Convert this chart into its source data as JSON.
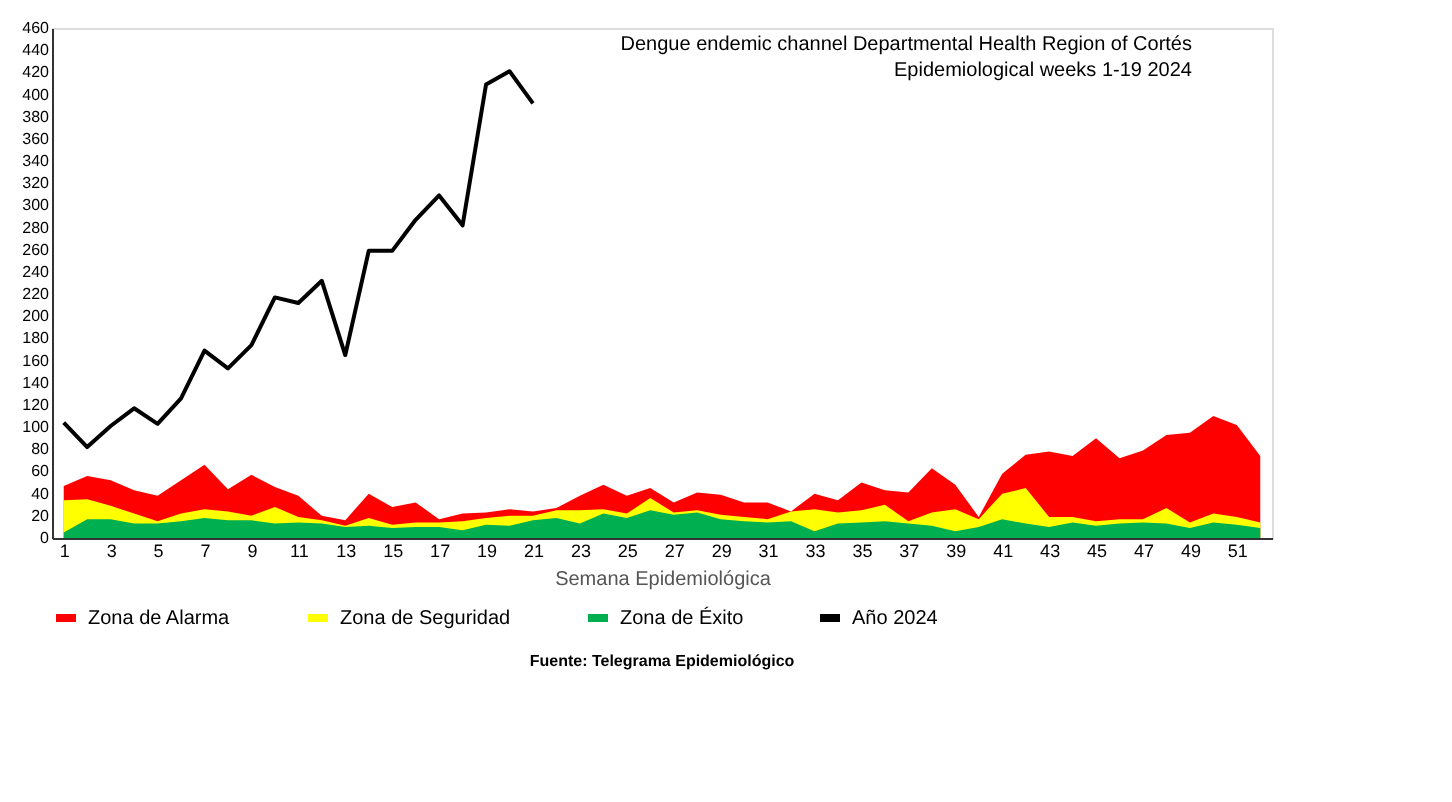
{
  "chart_data": {
    "type": "area",
    "title": "Dengue endemic channel Departmental Health Region of Cortés",
    "subtitle": "Epidemiological weeks 1-19 2024",
    "xlabel": "Semana Epidemiológica",
    "x": [
      1,
      2,
      3,
      4,
      5,
      6,
      7,
      8,
      9,
      10,
      11,
      12,
      13,
      14,
      15,
      16,
      17,
      18,
      19,
      20,
      21,
      22,
      23,
      24,
      25,
      26,
      27,
      28,
      29,
      30,
      31,
      32,
      33,
      34,
      35,
      36,
      37,
      38,
      39,
      40,
      41,
      42,
      43,
      44,
      45,
      46,
      47,
      48,
      49,
      50,
      51,
      52
    ],
    "series": [
      {
        "name": "Zona de Alarma",
        "color": "#ff0000",
        "values": [
          47,
          56,
          52,
          43,
          38,
          52,
          66,
          44,
          57,
          46,
          38,
          20,
          16,
          40,
          28,
          32,
          17,
          22,
          23,
          26,
          24,
          27,
          38,
          48,
          38,
          45,
          32,
          41,
          39,
          32,
          32,
          24,
          40,
          34,
          50,
          43,
          41,
          63,
          48,
          19,
          58,
          75,
          78,
          74,
          90,
          72,
          79,
          93,
          95,
          110,
          102,
          74
        ]
      },
      {
        "name": "Zona de Seguridad",
        "color": "#ffff00",
        "values": [
          34,
          35,
          29,
          22,
          15,
          22,
          26,
          24,
          20,
          28,
          19,
          16,
          11,
          18,
          12,
          14,
          14,
          15,
          18,
          20,
          20,
          25,
          25,
          26,
          22,
          36,
          23,
          25,
          21,
          19,
          17,
          24,
          26,
          23,
          25,
          30,
          15,
          23,
          26,
          17,
          40,
          45,
          19,
          19,
          15,
          17,
          17,
          27,
          14,
          22,
          19,
          14
        ]
      },
      {
        "name": "Zona de Éxito",
        "color": "#00b050",
        "values": [
          5,
          17,
          17,
          13,
          13,
          15,
          18,
          16,
          16,
          13,
          14,
          13,
          10,
          11,
          9,
          10,
          10,
          7,
          12,
          11,
          16,
          18,
          13,
          22,
          18,
          25,
          21,
          23,
          17,
          15,
          14,
          15,
          6,
          13,
          14,
          15,
          13,
          11,
          6,
          10,
          17,
          13,
          10,
          14,
          11,
          13,
          14,
          13,
          9,
          14,
          12,
          9
        ]
      },
      {
        "name": "Año 2024",
        "type": "line",
        "color": "#000000",
        "x": [
          1,
          2,
          3,
          4,
          5,
          6,
          7,
          8,
          9,
          10,
          11,
          12,
          13,
          14,
          15,
          16,
          17,
          18,
          19,
          20,
          21
        ],
        "values": [
          104,
          82,
          101,
          117,
          103,
          126,
          169,
          153,
          174,
          217,
          212,
          232,
          165,
          259,
          259,
          287,
          309,
          282,
          409,
          421,
          392
        ]
      }
    ],
    "xlim": [
      0.5,
      52.5
    ],
    "xticks": [
      1,
      3,
      5,
      7,
      9,
      11,
      13,
      15,
      17,
      19,
      21,
      23,
      25,
      27,
      29,
      31,
      33,
      35,
      37,
      39,
      41,
      43,
      45,
      47,
      49,
      51
    ],
    "ylim": [
      0,
      460
    ],
    "yticks": [
      0,
      20,
      40,
      60,
      80,
      100,
      120,
      140,
      160,
      180,
      200,
      220,
      240,
      260,
      280,
      300,
      320,
      340,
      360,
      380,
      400,
      420,
      440,
      460
    ],
    "grid": false,
    "legend": "bottom",
    "annotations": [
      "Fuente: Telegrama Epidemiológico"
    ]
  }
}
